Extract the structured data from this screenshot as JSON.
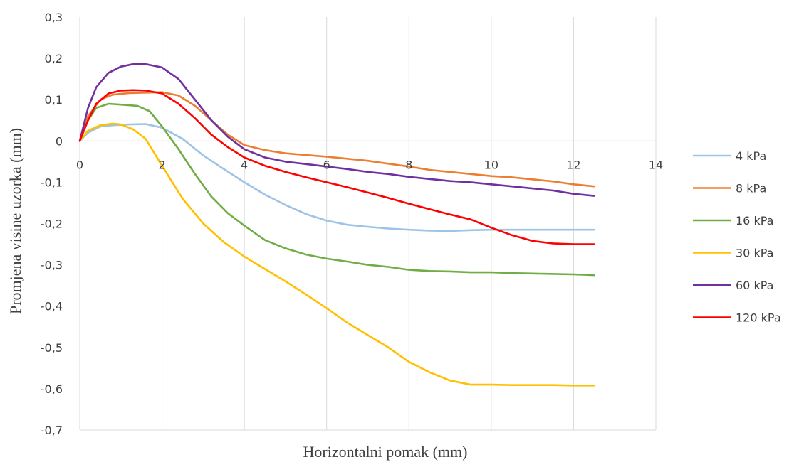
{
  "chart_data": {
    "type": "line",
    "title": "",
    "xlabel": "Horizontalni pomak (mm)",
    "ylabel": "Promjena visine uzorka (mm)",
    "xlim": [
      0,
      14
    ],
    "ylim": [
      -0.7,
      0.3
    ],
    "x_ticks": [
      0,
      2,
      4,
      6,
      8,
      10,
      12,
      14
    ],
    "x_tick_labels": [
      "0",
      "2",
      "4",
      "6",
      "8",
      "10",
      "12",
      "14"
    ],
    "y_ticks": [
      0.3,
      0.2,
      0.1,
      0,
      -0.1,
      -0.2,
      -0.3,
      -0.4,
      -0.5,
      -0.6,
      -0.7
    ],
    "y_tick_labels": [
      "0,3",
      "0,2",
      "0,1",
      "0",
      "-0,1",
      "-0,2",
      "-0,3",
      "-0,4",
      "-0,5",
      "-0,6",
      "-0,7"
    ],
    "grid": "vertical",
    "legend_position": "right",
    "series": [
      {
        "name": "4 kPa",
        "color": "#9dc3e6",
        "x": [
          0,
          0.2,
          0.5,
          0.8,
          1.2,
          1.6,
          2.0,
          2.5,
          3.0,
          3.5,
          4.0,
          4.5,
          5.0,
          5.5,
          6.0,
          6.5,
          7.0,
          7.5,
          8.0,
          8.5,
          9.0,
          9.5,
          10.0,
          10.5,
          11.0,
          11.5,
          12.0,
          12.5
        ],
        "y": [
          0,
          0.02,
          0.035,
          0.038,
          0.04,
          0.041,
          0.032,
          0.005,
          -0.035,
          -0.068,
          -0.1,
          -0.13,
          -0.155,
          -0.177,
          -0.193,
          -0.203,
          -0.208,
          -0.212,
          -0.215,
          -0.217,
          -0.218,
          -0.216,
          -0.215,
          -0.215,
          -0.215,
          -0.215,
          -0.215,
          -0.215
        ]
      },
      {
        "name": "8 kPa",
        "color": "#ed7d31",
        "x": [
          0,
          0.2,
          0.5,
          0.8,
          1.2,
          1.6,
          2.0,
          2.4,
          2.8,
          3.2,
          3.6,
          4.0,
          4.5,
          5.0,
          5.5,
          6.0,
          6.5,
          7.0,
          7.5,
          8.0,
          8.5,
          9.0,
          9.5,
          10.0,
          10.5,
          11.0,
          11.5,
          12.0,
          12.5
        ],
        "y": [
          0,
          0.06,
          0.1,
          0.112,
          0.116,
          0.117,
          0.118,
          0.11,
          0.085,
          0.05,
          0.015,
          -0.01,
          -0.022,
          -0.03,
          -0.034,
          -0.038,
          -0.043,
          -0.048,
          -0.055,
          -0.062,
          -0.07,
          -0.075,
          -0.08,
          -0.085,
          -0.088,
          -0.093,
          -0.098,
          -0.105,
          -0.11
        ]
      },
      {
        "name": "16 kPa",
        "color": "#70ad47",
        "x": [
          0,
          0.2,
          0.4,
          0.7,
          1.0,
          1.4,
          1.7,
          2.0,
          2.4,
          2.8,
          3.2,
          3.6,
          4.0,
          4.5,
          5.0,
          5.5,
          6.0,
          6.5,
          7.0,
          7.5,
          8.0,
          8.5,
          9.0,
          9.5,
          10.0,
          10.5,
          11.0,
          11.5,
          12.0,
          12.5
        ],
        "y": [
          0,
          0.05,
          0.08,
          0.09,
          0.088,
          0.085,
          0.072,
          0.035,
          -0.02,
          -0.08,
          -0.135,
          -0.175,
          -0.205,
          -0.24,
          -0.26,
          -0.275,
          -0.285,
          -0.292,
          -0.3,
          -0.305,
          -0.312,
          -0.315,
          -0.316,
          -0.318,
          -0.318,
          -0.32,
          -0.321,
          -0.322,
          -0.323,
          -0.325
        ]
      },
      {
        "name": "30 kPa",
        "color": "#ffc000",
        "x": [
          0,
          0.2,
          0.5,
          0.8,
          1.0,
          1.3,
          1.6,
          2.0,
          2.5,
          3.0,
          3.5,
          4.0,
          4.5,
          5.0,
          5.5,
          6.0,
          6.5,
          7.0,
          7.5,
          8.0,
          8.5,
          9.0,
          9.5,
          10.0,
          10.5,
          11.0,
          11.5,
          12.0,
          12.5
        ],
        "y": [
          0,
          0.025,
          0.038,
          0.042,
          0.04,
          0.028,
          0.005,
          -0.06,
          -0.14,
          -0.2,
          -0.245,
          -0.28,
          -0.31,
          -0.34,
          -0.372,
          -0.405,
          -0.44,
          -0.47,
          -0.5,
          -0.535,
          -0.56,
          -0.58,
          -0.59,
          -0.59,
          -0.591,
          -0.591,
          -0.591,
          -0.592,
          -0.592
        ]
      },
      {
        "name": "60 kPa",
        "color": "#7030a0",
        "x": [
          0,
          0.2,
          0.4,
          0.7,
          1.0,
          1.3,
          1.6,
          2.0,
          2.4,
          2.8,
          3.2,
          3.6,
          4.0,
          4.5,
          5.0,
          5.5,
          6.0,
          6.5,
          7.0,
          7.5,
          8.0,
          8.5,
          9.0,
          9.5,
          10.0,
          10.5,
          11.0,
          11.5,
          12.0,
          12.5
        ],
        "y": [
          0,
          0.08,
          0.13,
          0.165,
          0.18,
          0.186,
          0.186,
          0.178,
          0.15,
          0.1,
          0.05,
          0.01,
          -0.02,
          -0.04,
          -0.05,
          -0.056,
          -0.062,
          -0.068,
          -0.075,
          -0.08,
          -0.087,
          -0.092,
          -0.097,
          -0.1,
          -0.105,
          -0.11,
          -0.115,
          -0.12,
          -0.128,
          -0.133
        ]
      },
      {
        "name": "120 kPa",
        "color": "#ff0000",
        "x": [
          0,
          0.2,
          0.4,
          0.7,
          1.0,
          1.3,
          1.6,
          2.0,
          2.4,
          2.8,
          3.2,
          3.6,
          4.0,
          4.5,
          5.0,
          5.5,
          6.0,
          6.5,
          7.0,
          7.5,
          8.0,
          8.5,
          9.0,
          9.5,
          10.0,
          10.5,
          11.0,
          11.5,
          12.0,
          12.5
        ],
        "y": [
          0,
          0.05,
          0.09,
          0.115,
          0.122,
          0.123,
          0.122,
          0.115,
          0.09,
          0.055,
          0.015,
          -0.015,
          -0.04,
          -0.06,
          -0.075,
          -0.088,
          -0.1,
          -0.112,
          -0.125,
          -0.138,
          -0.152,
          -0.165,
          -0.178,
          -0.19,
          -0.21,
          -0.228,
          -0.242,
          -0.248,
          -0.25,
          -0.25
        ]
      }
    ]
  }
}
